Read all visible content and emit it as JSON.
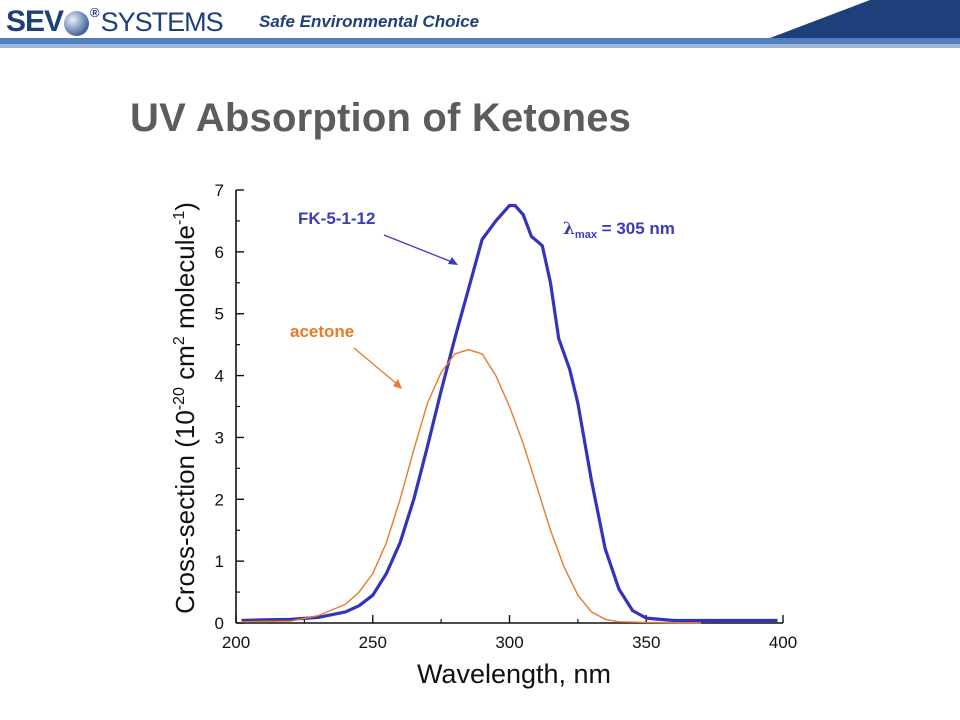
{
  "header": {
    "logo_sev": "SEV",
    "logo_reg": "®",
    "logo_systems": "SYSTEMS",
    "tagline": "Safe Environmental Choice",
    "band_color": "#1f3f7a",
    "bar_color": "#4f7fbf"
  },
  "slide": {
    "title": "UV Absorption of Ketones"
  },
  "chart_data": {
    "type": "line",
    "title": "",
    "xlabel": "Wavelength, nm",
    "ylabel_parts": {
      "a": "Cross-section (10",
      "sup1": "-20",
      "b": " cm",
      "sup2": "2",
      "c": " molecule",
      "sup3": "-1",
      "d": ")"
    },
    "xlim": [
      200,
      400
    ],
    "ylim": [
      0,
      7
    ],
    "x_ticks": [
      200,
      250,
      300,
      350,
      400
    ],
    "x_tick_labels": [
      "200",
      "250",
      "300",
      "350",
      "400"
    ],
    "y_ticks": [
      0,
      1,
      2,
      3,
      4,
      5,
      6,
      7
    ],
    "y_tick_labels": [
      "0",
      "1",
      "2",
      "3",
      "4",
      "5",
      "6",
      "7"
    ],
    "grid": false,
    "series": [
      {
        "name": "FK-5-1-12",
        "color": "#3333bb",
        "points": [
          [
            202,
            0.04
          ],
          [
            210,
            0.05
          ],
          [
            220,
            0.06
          ],
          [
            230,
            0.09
          ],
          [
            240,
            0.18
          ],
          [
            245,
            0.28
          ],
          [
            250,
            0.45
          ],
          [
            255,
            0.8
          ],
          [
            260,
            1.3
          ],
          [
            265,
            2.0
          ],
          [
            270,
            2.85
          ],
          [
            275,
            3.75
          ],
          [
            280,
            4.6
          ],
          [
            285,
            5.4
          ],
          [
            290,
            6.2
          ],
          [
            295,
            6.5
          ],
          [
            300,
            6.75
          ],
          [
            302,
            6.75
          ],
          [
            305,
            6.6
          ],
          [
            308,
            6.25
          ],
          [
            312,
            6.1
          ],
          [
            315,
            5.5
          ],
          [
            318,
            4.6
          ],
          [
            322,
            4.1
          ],
          [
            325,
            3.55
          ],
          [
            330,
            2.3
          ],
          [
            335,
            1.2
          ],
          [
            340,
            0.55
          ],
          [
            345,
            0.2
          ],
          [
            350,
            0.08
          ],
          [
            360,
            0.04
          ],
          [
            380,
            0.04
          ],
          [
            398,
            0.04
          ]
        ]
      },
      {
        "name": "acetone",
        "color": "#e87a2a",
        "points": [
          [
            202,
            0.02
          ],
          [
            220,
            0.03
          ],
          [
            230,
            0.12
          ],
          [
            240,
            0.3
          ],
          [
            245,
            0.5
          ],
          [
            250,
            0.8
          ],
          [
            255,
            1.3
          ],
          [
            260,
            2.0
          ],
          [
            265,
            2.8
          ],
          [
            270,
            3.55
          ],
          [
            275,
            4.05
          ],
          [
            280,
            4.35
          ],
          [
            285,
            4.42
          ],
          [
            290,
            4.35
          ],
          [
            295,
            4.0
          ],
          [
            300,
            3.5
          ],
          [
            305,
            2.9
          ],
          [
            310,
            2.2
          ],
          [
            315,
            1.5
          ],
          [
            320,
            0.9
          ],
          [
            325,
            0.45
          ],
          [
            330,
            0.18
          ],
          [
            335,
            0.06
          ],
          [
            340,
            0.02
          ],
          [
            350,
            0.01
          ],
          [
            370,
            0.0
          ]
        ]
      }
    ],
    "annotations": {
      "fk_label": "FK-5-1-12",
      "acetone_label": "acetone",
      "lambda_symbol": "λ",
      "lambda_sub": "max",
      "lambda_value": " = 305 nm"
    },
    "annotation_colors": {
      "fk": "#3b3bbb",
      "acetone": "#e87a2a"
    }
  }
}
